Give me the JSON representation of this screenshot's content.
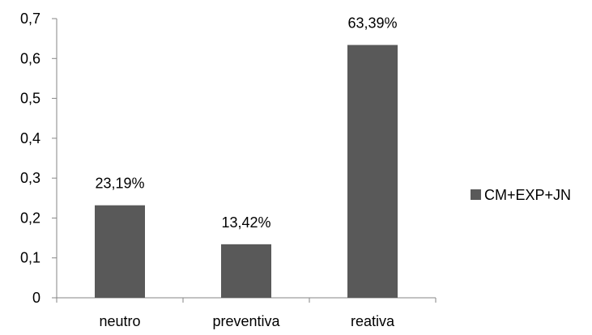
{
  "chart_data": {
    "type": "bar",
    "categories": [
      "neutro",
      "preventiva",
      "reativa"
    ],
    "series": [
      {
        "name": "CM+EXP+JN",
        "values": [
          0.2319,
          0.1342,
          0.6339
        ],
        "color": "#595959"
      }
    ],
    "data_labels": [
      "23,19%",
      "13,42%",
      "63,39%"
    ],
    "y_ticks": [
      "0",
      "0,1",
      "0,2",
      "0,3",
      "0,4",
      "0,5",
      "0,6",
      "0,7"
    ],
    "ylim": [
      0,
      0.7
    ],
    "grid": false,
    "legend_position": "right"
  }
}
